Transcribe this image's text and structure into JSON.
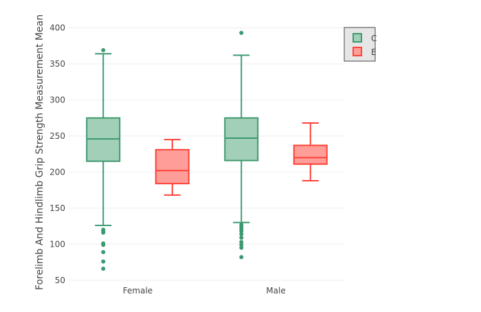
{
  "chart_data": {
    "type": "box",
    "categories": [
      "Female",
      "Male"
    ],
    "ylabel": "Forelimb And Hindlimb Grip Strength Measurement Mean",
    "xlabel": "",
    "ylim": [
      45,
      410
    ],
    "yticks": [
      50,
      100,
      150,
      200,
      250,
      300,
      350,
      400
    ],
    "grid": "horizontal",
    "legend_position": "top-right",
    "legend": {
      "visible_labels": [
        "C",
        "E"
      ]
    },
    "series": [
      {
        "color": "#3d9970",
        "fill": "#a2cfb7",
        "boxes": [
          {
            "category": "Female",
            "whisker_low": 126,
            "q1": 215,
            "median": 246,
            "q3": 275,
            "whisker_high": 364,
            "outliers": [
              66,
              76,
              89,
              99,
              101,
              116,
              118,
              120,
              369
            ]
          },
          {
            "category": "Male",
            "whisker_low": 130,
            "q1": 216,
            "median": 247,
            "q3": 275,
            "whisker_high": 362,
            "outliers": [
              82,
              95,
              99,
              103,
              109,
              114,
              118,
              121,
              124,
              127,
              393
            ]
          }
        ]
      },
      {
        "color": "#ff4136",
        "fill": "#ff9e99",
        "boxes": [
          {
            "category": "Female",
            "whisker_low": 168,
            "q1": 184,
            "median": 202,
            "q3": 231,
            "whisker_high": 245,
            "outliers": []
          },
          {
            "category": "Male",
            "whisker_low": 188,
            "q1": 211,
            "median": 220,
            "q3": 237,
            "whisker_high": 268,
            "outliers": []
          }
        ]
      }
    ]
  }
}
